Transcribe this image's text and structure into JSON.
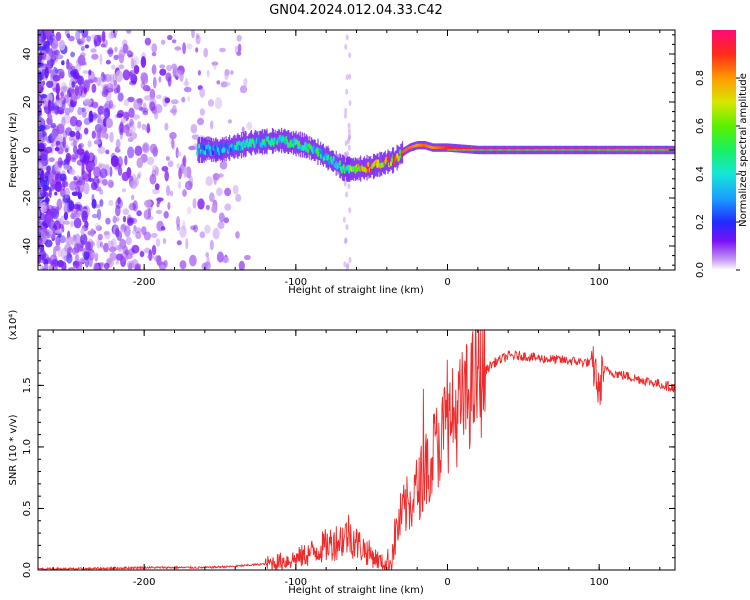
{
  "title": "GN04.2024.012.04.33.C42",
  "colors": {
    "snr_line": "#ee2a2a",
    "axis": "#000000",
    "band": "#6a0ef0"
  },
  "chart_data": [
    {
      "type": "heatmap",
      "xlabel": "Height of straight line (km)",
      "ylabel": "Frequency (Hz)",
      "xlim": [
        -270,
        150
      ],
      "ylim": [
        -50,
        50
      ],
      "xticks": [
        -200,
        -100,
        0,
        100
      ],
      "yticks": [
        -40,
        -20,
        0,
        20,
        40
      ],
      "xtick_labels": [
        "-200",
        "-100",
        "0",
        "100"
      ],
      "ytick_labels": [
        "-40",
        "-20",
        "0",
        "20",
        "40"
      ],
      "colorbar": {
        "label": "Normalized spectral amplitude",
        "range": [
          0,
          1
        ],
        "ticks": [
          0.0,
          0.2,
          0.4,
          0.6,
          0.8
        ],
        "tick_labels": [
          "0.0",
          "0.2",
          "0.4",
          "0.6",
          "0.8"
        ],
        "colormap": "rainbow"
      },
      "carrier_track": {
        "x": [
          -165,
          -150,
          -130,
          -110,
          -95,
          -85,
          -75,
          -68,
          -60,
          -50,
          -40,
          -35,
          -30,
          -25,
          -20,
          -15,
          -10,
          -5,
          0,
          20,
          60,
          100,
          150
        ],
        "frequency": [
          0,
          0,
          3,
          4,
          2,
          -1,
          -5,
          -8,
          -8,
          -7,
          -5,
          -4,
          -1,
          1,
          2,
          2,
          1,
          1,
          1,
          0,
          0,
          0,
          0
        ],
        "amplitude": [
          0.4,
          0.35,
          0.45,
          0.5,
          0.55,
          0.5,
          0.45,
          0.55,
          0.75,
          0.85,
          0.9,
          0.8,
          0.85,
          0.85,
          0.8,
          0.85,
          0.8,
          0.85,
          0.9,
          0.92,
          0.9,
          0.88,
          0.85
        ]
      }
    },
    {
      "type": "line",
      "xlabel": "Height of straight line (km)",
      "ylabel": "SNR (10 * v/v)",
      "y_multiplier": "(x10⁴)",
      "xlim": [
        -270,
        150
      ],
      "ylim": [
        0,
        1.95
      ],
      "xticks": [
        -200,
        -100,
        0,
        100
      ],
      "yticks": [
        0.0,
        0.5,
        1.0,
        1.5
      ],
      "xtick_labels": [
        "-200",
        "-100",
        "0",
        "100"
      ],
      "ytick_labels": [
        "0.0",
        "0.5",
        "1.0",
        "1.5"
      ],
      "series": [
        {
          "x": [
            -270,
            -240,
            -200,
            -160,
            -140,
            -120,
            -100,
            -90,
            -80,
            -70,
            -65,
            -60,
            -50,
            -42,
            -38,
            -34,
            -30,
            -25,
            -20,
            -15,
            -10,
            -5,
            0,
            5,
            10,
            15,
            20,
            25,
            30,
            40,
            50,
            60,
            70,
            80,
            90,
            95,
            98,
            100,
            102,
            105,
            110,
            120,
            130,
            140,
            150
          ],
          "y": [
            0.01,
            0.01,
            0.02,
            0.02,
            0.03,
            0.05,
            0.09,
            0.14,
            0.2,
            0.25,
            0.3,
            0.22,
            0.12,
            0.05,
            0.05,
            0.3,
            0.45,
            0.55,
            0.65,
            0.8,
            0.95,
            1.05,
            1.2,
            1.25,
            1.35,
            1.45,
            1.55,
            1.62,
            1.68,
            1.74,
            1.74,
            1.72,
            1.71,
            1.7,
            1.69,
            1.68,
            1.6,
            1.4,
            1.62,
            1.62,
            1.6,
            1.57,
            1.54,
            1.51,
            1.48
          ]
        }
      ]
    }
  ]
}
